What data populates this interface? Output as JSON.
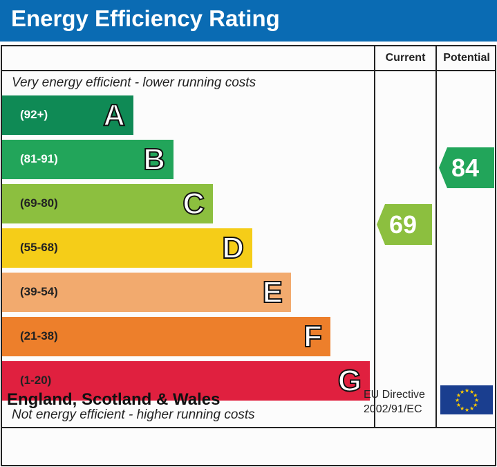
{
  "title": "Energy Efficiency Rating",
  "columns": {
    "current": "Current",
    "potential": "Potential"
  },
  "top_caption": "Very energy efficient - lower running costs",
  "bottom_caption": "Not energy efficient - higher running costs",
  "bands": [
    {
      "letter": "A",
      "range": "(92+)",
      "color": "#0f8a55",
      "text": "#fff"
    },
    {
      "letter": "B",
      "range": "(81-91)",
      "color": "#22a55a",
      "text": "#fff"
    },
    {
      "letter": "C",
      "range": "(69-80)",
      "color": "#8cbf3f",
      "text": "#222"
    },
    {
      "letter": "D",
      "range": "(55-68)",
      "color": "#f5cd18",
      "text": "#222"
    },
    {
      "letter": "E",
      "range": "(39-54)",
      "color": "#f2aa6e",
      "text": "#222"
    },
    {
      "letter": "F",
      "range": "(21-38)",
      "color": "#ed7f2b",
      "text": "#222"
    },
    {
      "letter": "G",
      "range": "(1-20)",
      "color": "#e0203f",
      "text": "#222"
    }
  ],
  "current": {
    "value": "69",
    "band": "C",
    "color": "#8cbf3f"
  },
  "potential": {
    "value": "84",
    "band": "B",
    "color": "#22a55a"
  },
  "footer": {
    "region": "England, Scotland & Wales",
    "directive_line1": "EU Directive",
    "directive_line2": "2002/91/EC"
  }
}
